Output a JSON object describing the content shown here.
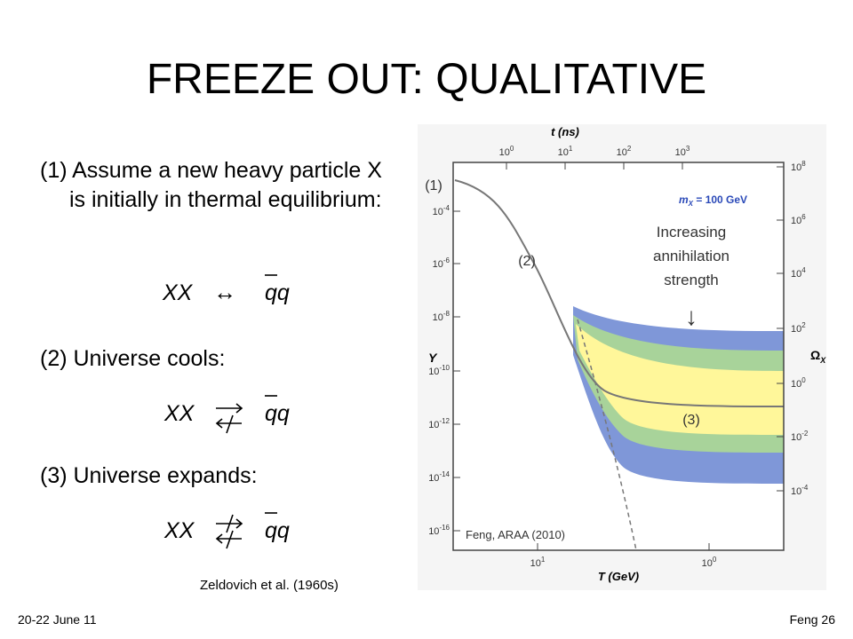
{
  "title": "FREEZE OUT: QUALITATIVE",
  "steps": [
    {
      "label": "(1) Assume a new heavy particle X is initially in thermal equilibrium:",
      "lhs": "XX",
      "rhs": "qq"
    },
    {
      "label": "(2) Universe cools:",
      "lhs": "XX",
      "rhs": "qq"
    },
    {
      "label": "(3) Universe expands:",
      "lhs": "XX",
      "rhs": "qq"
    }
  ],
  "eq1_arrow": "↔",
  "citation": "Zeldovich et al. (1960s)",
  "footer": {
    "left": "20-22 June 11",
    "right": "Feng 26"
  },
  "figure": {
    "top_axis_label": "t (ns)",
    "bottom_axis_label": "T (GeV)",
    "left_axis_label": "Y",
    "right_axis_label": "Ω",
    "right_axis_label_sub": "X",
    "mass_label": "m",
    "mass_label_sub": "X",
    "mass_value": " = 100 GeV",
    "credit": "Feng, ARAA (2010)",
    "top_ticks": [
      {
        "base": "10",
        "exp": "0"
      },
      {
        "base": "10",
        "exp": "1"
      },
      {
        "base": "10",
        "exp": "2"
      },
      {
        "base": "10",
        "exp": "3"
      }
    ],
    "bottom_ticks": [
      {
        "base": "10",
        "exp": "1"
      },
      {
        "base": "10",
        "exp": "0"
      }
    ],
    "left_ticks": [
      {
        "base": "10",
        "exp": "-4"
      },
      {
        "base": "10",
        "exp": "-6"
      },
      {
        "base": "10",
        "exp": "-8"
      },
      {
        "base": "10",
        "exp": "-10"
      },
      {
        "base": "10",
        "exp": "-12"
      },
      {
        "base": "10",
        "exp": "-14"
      },
      {
        "base": "10",
        "exp": "-16"
      }
    ],
    "right_ticks": [
      {
        "base": "10",
        "exp": "8"
      },
      {
        "base": "10",
        "exp": "6"
      },
      {
        "base": "10",
        "exp": "4"
      },
      {
        "base": "10",
        "exp": "2"
      },
      {
        "base": "10",
        "exp": "0"
      },
      {
        "base": "10",
        "exp": "-2"
      },
      {
        "base": "10",
        "exp": "-4"
      }
    ],
    "annotations": [
      "(1)",
      "(2)",
      "(3)"
    ],
    "strength_lines": [
      "Increasing",
      "annihilation",
      "strength"
    ],
    "strength_arrow": "↓"
  }
}
